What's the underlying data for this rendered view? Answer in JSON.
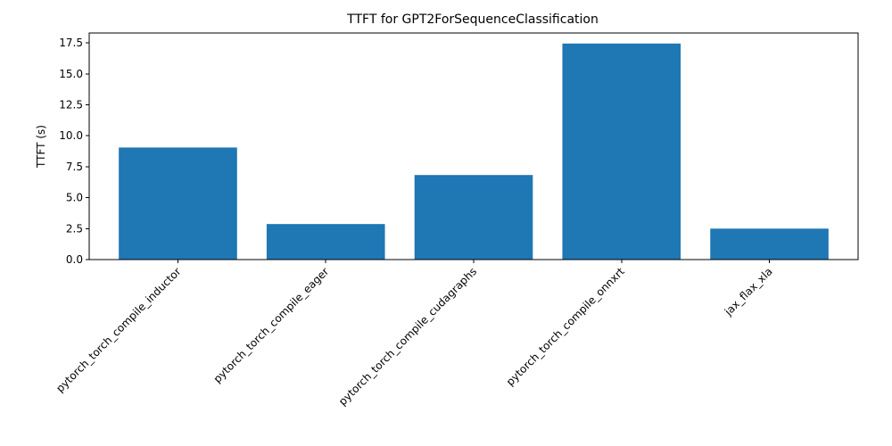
{
  "chart_data": {
    "type": "bar",
    "title": "TTFT for GPT2ForSequenceClassification",
    "xlabel": "",
    "ylabel": "TTFT (s)",
    "categories": [
      "pytorch_torch_compile_inductor",
      "pytorch_torch_compile_eager",
      "pytorch_torch_compile_cudagraphs",
      "pytorch_torch_compile_onnxrt",
      "jax_flax_xla"
    ],
    "values": [
      9.05,
      2.87,
      6.83,
      17.45,
      2.5
    ],
    "ylim": [
      0,
      18.3
    ],
    "yticks": [
      0.0,
      2.5,
      5.0,
      7.5,
      10.0,
      12.5,
      15.0,
      17.5
    ],
    "ytick_labels": [
      "0.0",
      "2.5",
      "5.0",
      "7.5",
      "10.0",
      "12.5",
      "15.0",
      "17.5"
    ],
    "grid": false,
    "bar_color": "#1f77b4"
  }
}
